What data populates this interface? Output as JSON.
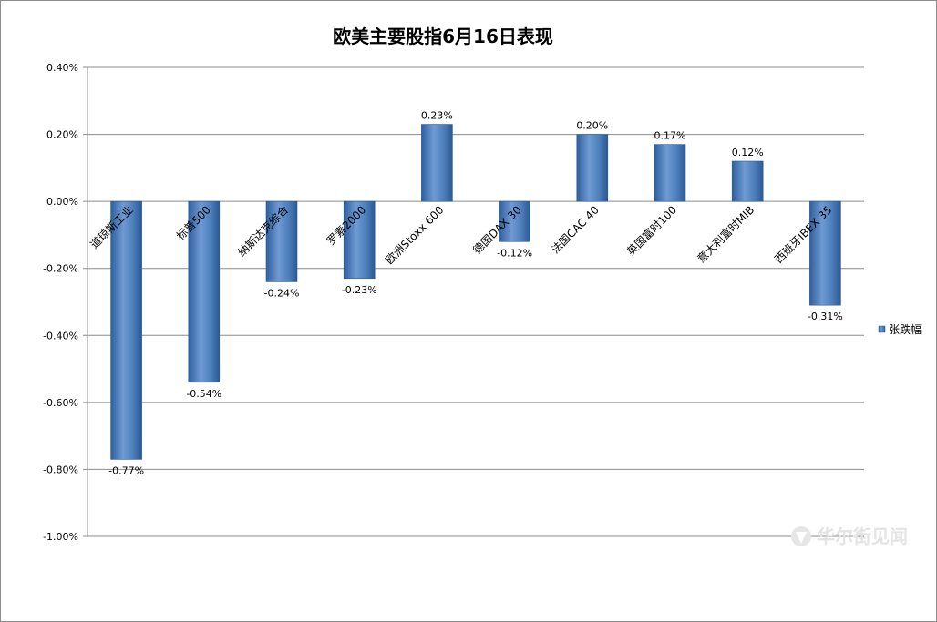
{
  "chart_data": {
    "type": "bar",
    "title": "欧美主要股指6月16日表现",
    "categories": [
      "道琼斯工业",
      "标普500",
      "纳斯达克综合",
      "罗素2000",
      "欧洲Stoxx 600",
      "德国DAX 30",
      "法国CAC 40",
      "英国富时100",
      "意大利富时MIB",
      "西班牙IBEX 35"
    ],
    "series": [
      {
        "name": "张跌幅",
        "values": [
          -0.77,
          -0.54,
          -0.24,
          -0.23,
          0.23,
          -0.12,
          0.2,
          0.17,
          0.12,
          -0.31
        ],
        "labels": [
          "-0.77%",
          "-0.54%",
          "-0.24%",
          "-0.23%",
          "0.23%",
          "-0.12%",
          "0.20%",
          "0.17%",
          "0.12%",
          "-0.31%"
        ]
      }
    ],
    "ylim": [
      -1.0,
      0.4
    ],
    "yticks": [
      0.4,
      0.2,
      0.0,
      -0.2,
      -0.4,
      -0.6,
      -0.8,
      -1.0
    ],
    "ytick_labels": [
      "0.40%",
      "0.20%",
      "0.00%",
      "-0.20%",
      "-0.40%",
      "-0.60%",
      "-0.80%",
      "-1.00%"
    ],
    "grid": true,
    "legend": "right",
    "colors": {
      "bar": "#4f81bd",
      "bar_dark": "#2a5a96",
      "bar_light": "#7fa6d8",
      "grid": "#8c8c8c",
      "axis": "#8c8c8c"
    }
  },
  "watermark": {
    "text": "华尔街见闻",
    "icon": "wallstreetcn-logo-icon"
  }
}
